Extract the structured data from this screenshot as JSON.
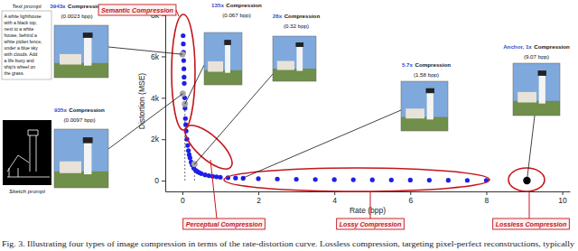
{
  "chart_data": {
    "type": "scatter",
    "x_label": "Rate (bpp)",
    "y_label": "Distortion (MSE)",
    "xlim": [
      -0.45,
      10.2
    ],
    "ylim": [
      -520,
      8200
    ],
    "xticks": [
      0,
      2,
      4,
      6,
      8,
      10
    ],
    "yticks": [
      0,
      {
        "value": 2000,
        "label": "2k"
      },
      {
        "value": 4000,
        "label": "4k"
      },
      {
        "value": 6000,
        "label": "6k"
      },
      {
        "value": 8000,
        "label": "8k"
      }
    ],
    "series": [
      {
        "color": "#1f1fe8",
        "marker": "circle",
        "x": [
          0.02,
          0.025,
          0.03,
          0.035,
          0.04,
          0.045,
          0.05,
          0.06,
          0.07,
          0.08,
          0.09,
          0.1,
          0.12,
          0.14,
          0.16,
          0.18,
          0.2,
          0.23,
          0.26,
          0.3,
          0.35,
          0.4,
          0.45,
          0.5,
          0.6,
          0.7,
          0.8,
          0.9,
          1.0,
          1.2,
          1.4,
          1.6,
          2.0,
          2.5,
          3.0,
          3.5,
          4.0,
          4.5,
          5.0,
          5.5,
          6.0,
          6.5,
          7.0,
          7.5,
          8.0
        ],
        "values": [
          7000,
          6600,
          6200,
          5800,
          5400,
          5000,
          4700,
          4000,
          3500,
          3000,
          2700,
          2400,
          2000,
          1700,
          1450,
          1250,
          1100,
          900,
          750,
          600,
          500,
          430,
          380,
          340,
          280,
          240,
          210,
          185,
          165,
          140,
          125,
          115,
          95,
          80,
          68,
          58,
          50,
          43,
          37,
          32,
          27,
          22,
          18,
          14,
          11
        ]
      },
      {
        "color": "#a6a6a6",
        "marker": "circle",
        "x": [
          0.0023,
          0.0097,
          0.067,
          0.32
        ],
        "values": [
          6100,
          4200,
          3700,
          800
        ]
      },
      {
        "color": "#000000",
        "marker": "circle",
        "x": [
          9.07
        ],
        "values": [
          0
        ]
      }
    ],
    "annotations": [
      {
        "ratio": "3943x",
        "word": "Compression",
        "bpp": "(0.0023 bpp)",
        "x": 0.0023,
        "y": 6100
      },
      {
        "ratio": "935x",
        "word": "Compression",
        "bpp": "(0.0097 bpp)",
        "x": 0.0097,
        "y": 4200
      },
      {
        "ratio": "135x",
        "word": "Compression",
        "bpp": "(0.067 bpp)",
        "x": 0.067,
        "y": 3700,
        "line_style": "dashed"
      },
      {
        "ratio": "28x",
        "word": "Compression",
        "bpp": "(0.32 bpp)",
        "x": 0.32,
        "y": 800,
        "line_style": "dashed"
      },
      {
        "ratio": "5.7x",
        "word": "Compression",
        "bpp": "(1.58 bpp)",
        "x": 1.58,
        "y": 115,
        "line_style": "dashed"
      },
      {
        "ratio": "Anchor, 1x",
        "word": "Compression",
        "bpp": "(9.07 bpp)",
        "x": 9.07,
        "y": 0
      }
    ],
    "regions": [
      "Semantic Compression",
      "Perceptual Compression",
      "Lossy Compression",
      "Lossless Compression"
    ],
    "text_prompt": {
      "title": "Text prompt",
      "lines": [
        "A white lighthouse",
        "with a black top,",
        "next to a white",
        "house, behind a",
        "white picket fence,",
        "under a blue sky",
        "with clouds. Add",
        "a life buoy and",
        "ship's wheel on",
        "the grass."
      ]
    },
    "sketch_prompt": "Sketch prompt",
    "caption": "Fig. 3. Illustrating four types of image compression in terms of the rate-distortion curve. Lossless compression, targeting pixel-perfect reconstructions, typically"
  }
}
